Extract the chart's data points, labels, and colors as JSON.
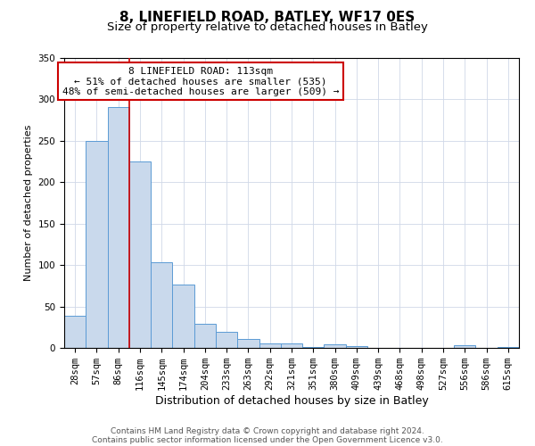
{
  "title": "8, LINEFIELD ROAD, BATLEY, WF17 0ES",
  "subtitle": "Size of property relative to detached houses in Batley",
  "xlabel": "Distribution of detached houses by size in Batley",
  "ylabel": "Number of detached properties",
  "bar_labels": [
    "28sqm",
    "57sqm",
    "86sqm",
    "116sqm",
    "145sqm",
    "174sqm",
    "204sqm",
    "233sqm",
    "263sqm",
    "292sqm",
    "321sqm",
    "351sqm",
    "380sqm",
    "409sqm",
    "439sqm",
    "468sqm",
    "498sqm",
    "527sqm",
    "556sqm",
    "586sqm",
    "615sqm"
  ],
  "bar_heights": [
    39,
    250,
    291,
    225,
    103,
    77,
    29,
    19,
    11,
    5,
    5,
    1,
    4,
    2,
    0,
    0,
    0,
    0,
    3,
    0,
    1
  ],
  "bar_color": "#c9d9ec",
  "bar_edge_color": "#5b9bd5",
  "vline_x_index": 3,
  "vline_color": "#cc0000",
  "annotation_title": "8 LINEFIELD ROAD: 113sqm",
  "annotation_line1": "← 51% of detached houses are smaller (535)",
  "annotation_line2": "48% of semi-detached houses are larger (509) →",
  "annotation_box_color": "#cc0000",
  "ylim": [
    0,
    350
  ],
  "yticks": [
    0,
    50,
    100,
    150,
    200,
    250,
    300,
    350
  ],
  "footer1": "Contains HM Land Registry data © Crown copyright and database right 2024.",
  "footer2": "Contains public sector information licensed under the Open Government Licence v3.0.",
  "title_fontsize": 11,
  "subtitle_fontsize": 9.5,
  "xlabel_fontsize": 9,
  "ylabel_fontsize": 8,
  "tick_fontsize": 7.5,
  "annotation_fontsize": 8,
  "footer_fontsize": 6.5
}
